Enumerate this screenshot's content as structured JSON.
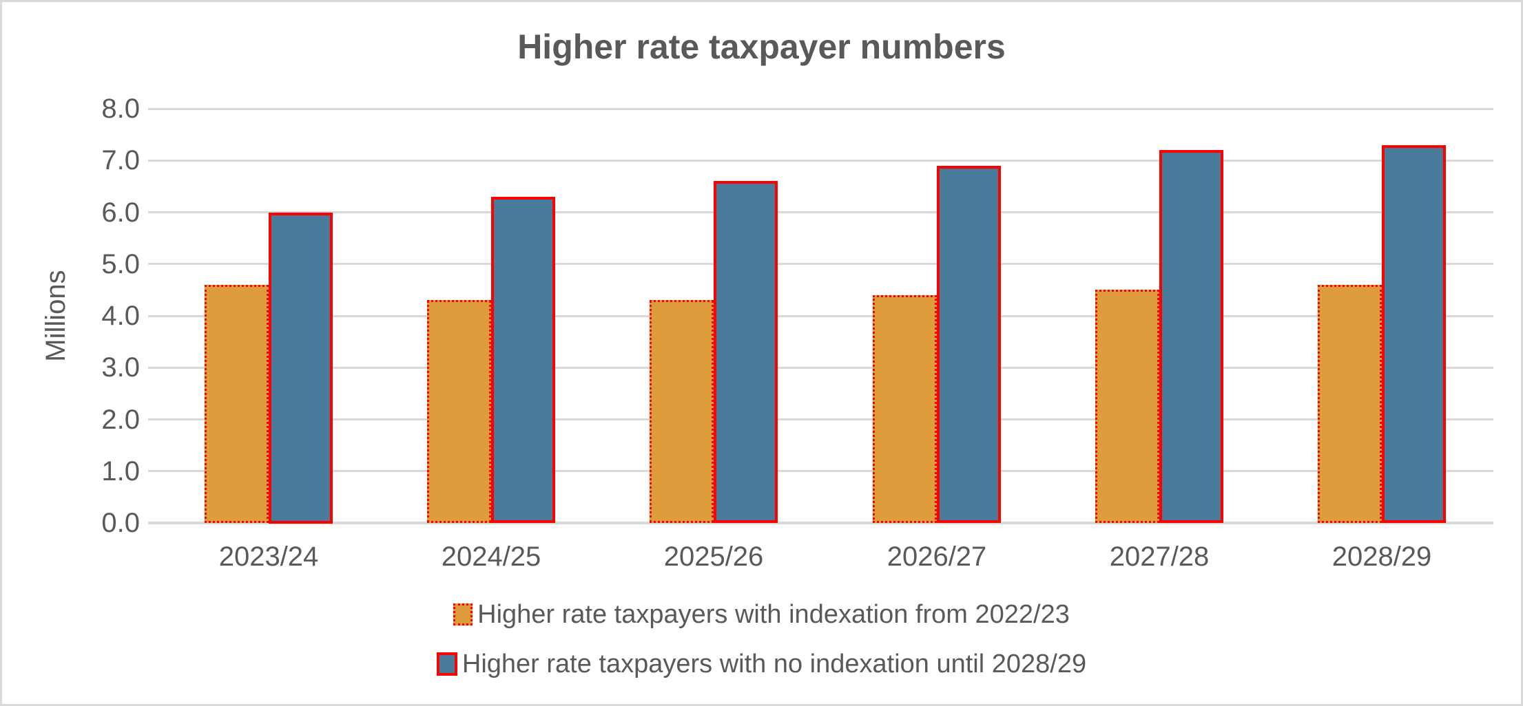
{
  "frame": {
    "background": "#ffffff",
    "border_color": "#d9d9d9"
  },
  "chart_data": {
    "type": "bar",
    "title": "Higher rate taxpayer numbers",
    "xlabel": "",
    "ylabel": "Millions",
    "categories": [
      "2023/24",
      "2024/25",
      "2025/26",
      "2026/27",
      "2027/28",
      "2028/29"
    ],
    "series": [
      {
        "name": "Higher rate taxpayers with indexation from 2022/23",
        "values": [
          4.6,
          4.3,
          4.3,
          4.4,
          4.5,
          4.6
        ],
        "fill": "#df9c3c",
        "border_color": "#ff0000",
        "border_style": "dotted"
      },
      {
        "name": "Higher rate taxpayers with no indexation until 2028/29",
        "values": [
          6.0,
          6.3,
          6.6,
          6.9,
          7.2,
          7.3
        ],
        "fill": "#497b9b",
        "border_color": "#ff0000",
        "border_style": "solid"
      }
    ],
    "ylim": [
      0,
      8
    ],
    "ytick_step": 1.0,
    "ytick_labels": [
      "0.0",
      "1.0",
      "2.0",
      "3.0",
      "4.0",
      "5.0",
      "6.0",
      "7.0",
      "8.0"
    ],
    "grid": true,
    "gridline_color": "#d9d9d9",
    "text_color": "#595959",
    "legend_position": "bottom"
  }
}
